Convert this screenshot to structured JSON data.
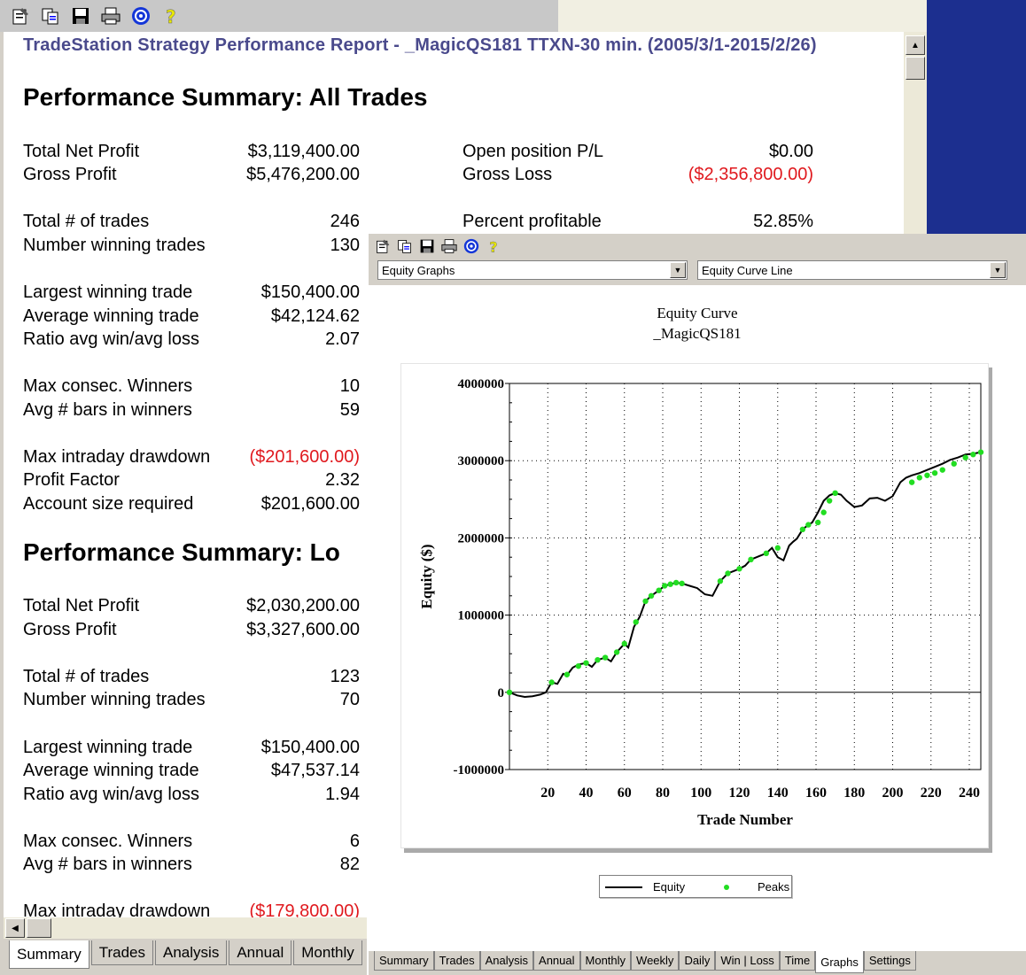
{
  "report": {
    "toolbar_icons": [
      "properties-icon",
      "copy-icon",
      "save-icon",
      "print-icon",
      "target-icon",
      "help-icon"
    ],
    "title": "TradeStation  Strategy Performance Report - _MagicQS181 TTXN-30 min. (2005/3/1-2015/2/26)",
    "all_trades": {
      "heading": "Performance Summary:  All Trades",
      "total_net_profit_label": "Total Net Profit",
      "total_net_profit": "$3,119,400.00",
      "gross_profit_label": "Gross Profit",
      "gross_profit": "$5,476,200.00",
      "open_pl_label": "Open position P/L",
      "open_pl": "$0.00",
      "gross_loss_label": "Gross Loss",
      "gross_loss": "($2,356,800.00)",
      "total_trades_label": "Total # of trades",
      "total_trades": "246",
      "pct_profitable_label": "Percent profitable",
      "pct_profitable": "52.85%",
      "winning_trades_label": "Number winning trades",
      "winning_trades": "130",
      "largest_win_label": "Largest winning trade",
      "largest_win": "$150,400.00",
      "avg_win_label": "Average winning trade",
      "avg_win": "$42,124.62",
      "ratio_label": "Ratio avg win/avg loss",
      "ratio": "2.07",
      "max_consec_label": "Max consec. Winners",
      "max_consec": "10",
      "avg_bars_label": "Avg # bars in winners",
      "avg_bars": "59",
      "max_dd_label": "Max intraday drawdown",
      "max_dd": "($201,600.00)",
      "profit_factor_label": "Profit Factor",
      "profit_factor": "2.32",
      "account_size_label": "Account size required",
      "account_size": "$201,600.00"
    },
    "long_trades": {
      "heading": "Performance Summary:  Lo",
      "total_net_profit_label": "Total Net Profit",
      "total_net_profit": "$2,030,200.00",
      "gross_profit_label": "Gross Profit",
      "gross_profit": "$3,327,600.00",
      "total_trades_label": "Total # of trades",
      "total_trades": "123",
      "winning_trades_label": "Number winning trades",
      "winning_trades": "70",
      "largest_win_label": "Largest winning trade",
      "largest_win": "$150,400.00",
      "avg_win_label": "Average winning trade",
      "avg_win": "$47,537.14",
      "ratio_label": "Ratio avg win/avg loss",
      "ratio": "1.94",
      "max_consec_label": "Max consec. Winners",
      "max_consec": "6",
      "avg_bars_label": "Avg # bars in winners",
      "avg_bars": "82",
      "max_dd_label": "Max intraday drawdown",
      "max_dd": "($179,800.00)"
    },
    "tabs": [
      "Summary",
      "Trades",
      "Analysis",
      "Annual",
      "Monthly"
    ],
    "active_tab": "Summary"
  },
  "graph": {
    "toolbar_icons": [
      "properties-icon",
      "copy-icon",
      "save-icon",
      "print-icon",
      "target-icon",
      "help-icon"
    ],
    "graph_type_select": "Equity Graphs",
    "graph_style_select": "Equity Curve Line",
    "title_line1": "Equity Curve",
    "title_line2": "_MagicQS181",
    "legend": {
      "equity_label": "Equity",
      "peaks_label": "Peaks"
    },
    "tabs": [
      "Summary",
      "Trades",
      "Analysis",
      "Annual",
      "Monthly",
      "Weekly",
      "Daily",
      "Win | Loss",
      "Time",
      "Graphs",
      "Settings"
    ],
    "active_tab": "Graphs",
    "colors": {
      "line": "#000000",
      "peaks": "#22dd22"
    }
  },
  "chart_data": {
    "type": "line",
    "title": "Equity Curve _MagicQS181",
    "xlabel": "Trade Number",
    "ylabel": "Equity ($)",
    "xlim": [
      0,
      246
    ],
    "ylim": [
      -1000000,
      4000000
    ],
    "x_ticks": [
      20,
      40,
      60,
      80,
      100,
      120,
      140,
      160,
      180,
      200,
      220,
      240
    ],
    "y_ticks": [
      -1000000,
      0,
      1000000,
      2000000,
      3000000,
      4000000
    ],
    "y_tick_labels": [
      "-1000000",
      "0",
      "1000000",
      "2000000",
      "3000000",
      "4000000"
    ],
    "grid": true,
    "legend": "bottom",
    "series": [
      {
        "name": "Equity",
        "x": [
          0,
          4,
          8,
          12,
          16,
          19,
          22,
          25,
          28,
          30,
          33,
          36,
          40,
          43,
          46,
          50,
          53,
          56,
          60,
          62,
          65,
          68,
          71,
          74,
          78,
          81,
          84,
          87,
          90,
          94,
          98,
          102,
          106,
          110,
          114,
          117,
          120,
          123,
          126,
          130,
          134,
          137,
          140,
          143,
          146,
          148,
          150,
          153,
          156,
          158,
          161,
          164,
          167,
          170,
          173,
          176,
          180,
          184,
          188,
          192,
          196,
          200,
          204,
          207,
          210,
          214,
          218,
          222,
          226,
          230,
          234,
          238,
          242,
          246
        ],
        "y": [
          0,
          -40000,
          -60000,
          -50000,
          -30000,
          0,
          130000,
          110000,
          240000,
          220000,
          320000,
          360000,
          380000,
          330000,
          420000,
          450000,
          400000,
          520000,
          630000,
          580000,
          850000,
          980000,
          1180000,
          1250000,
          1320000,
          1380000,
          1400000,
          1420000,
          1410000,
          1380000,
          1350000,
          1270000,
          1250000,
          1440000,
          1540000,
          1570000,
          1600000,
          1640000,
          1720000,
          1760000,
          1800000,
          1870000,
          1750000,
          1710000,
          1900000,
          1950000,
          1990000,
          2110000,
          2170000,
          2200000,
          2330000,
          2480000,
          2550000,
          2580000,
          2560000,
          2480000,
          2400000,
          2420000,
          2510000,
          2520000,
          2480000,
          2540000,
          2720000,
          2780000,
          2810000,
          2840000,
          2880000,
          2920000,
          2960000,
          3010000,
          3040000,
          3080000,
          3090000,
          3110000
        ]
      },
      {
        "name": "Peaks",
        "x": [
          0,
          22,
          30,
          36,
          40,
          46,
          50,
          56,
          60,
          66,
          71,
          74,
          78,
          81,
          84,
          87,
          90,
          110,
          114,
          120,
          126,
          134,
          140,
          153,
          156,
          161,
          164,
          167,
          170,
          210,
          214,
          218,
          222,
          226,
          232,
          238,
          242,
          246
        ],
        "y": [
          0,
          130000,
          230000,
          340000,
          380000,
          420000,
          450000,
          520000,
          630000,
          910000,
          1180000,
          1250000,
          1320000,
          1380000,
          1400000,
          1420000,
          1410000,
          1440000,
          1540000,
          1600000,
          1720000,
          1800000,
          1870000,
          2110000,
          2170000,
          2200000,
          2330000,
          2480000,
          2580000,
          2720000,
          2780000,
          2810000,
          2840000,
          2880000,
          2960000,
          3040000,
          3080000,
          3110000
        ]
      }
    ]
  }
}
